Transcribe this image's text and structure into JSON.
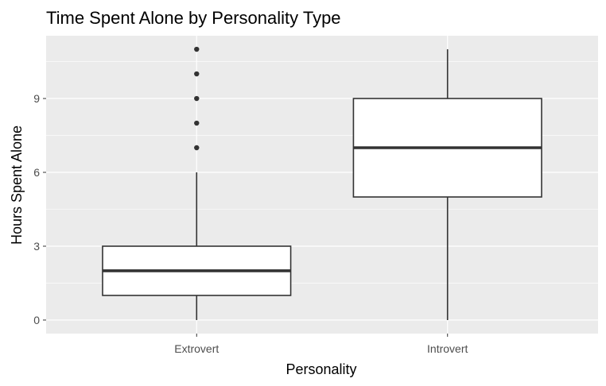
{
  "chart_data": {
    "type": "boxplot",
    "title": "Time Spent Alone by Personality Type",
    "xlabel": "Personality",
    "ylabel": "Hours Spent Alone",
    "categories": [
      "Extrovert",
      "Introvert"
    ],
    "y_ticks": [
      0,
      3,
      6,
      9
    ],
    "y_tick_labels": [
      "0",
      "3",
      "6",
      "9"
    ],
    "ylim": [
      -0.55,
      11.55
    ],
    "grid": true,
    "legend": "none",
    "boxes": [
      {
        "category": "Extrovert",
        "whisker_low": 0,
        "q1": 1,
        "median": 2,
        "q3": 3,
        "whisker_high": 6,
        "outliers": [
          7,
          8,
          9,
          10,
          11
        ]
      },
      {
        "category": "Introvert",
        "whisker_low": 0,
        "q1": 5,
        "median": 7,
        "q3": 9,
        "whisker_high": 11,
        "outliers": []
      }
    ],
    "colors": {
      "panel_background": "#ebebeb",
      "grid_major": "#ffffff",
      "grid_minor": "#f5f5f5",
      "box_fill": "#ffffff",
      "box_stroke": "#333333",
      "tick_text": "#4d4d4d",
      "text": "#000000"
    }
  }
}
